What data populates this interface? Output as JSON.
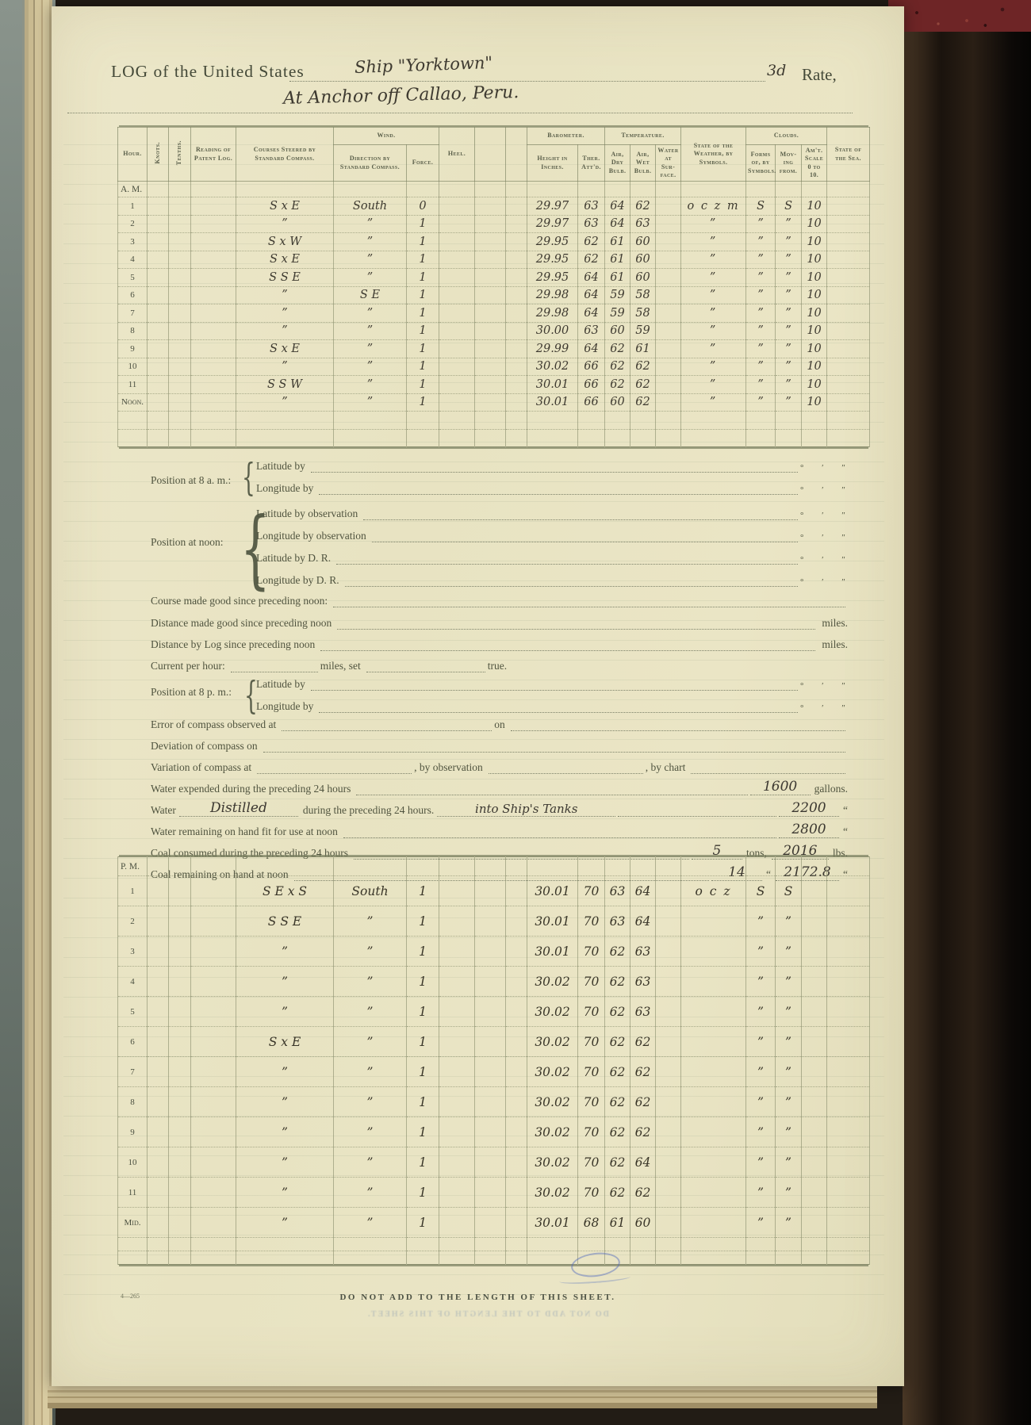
{
  "header": {
    "log_label": "LOG of the United States",
    "ship_name": "Ship \"Yorktown\"",
    "rate_value": "3d",
    "rate_label": "Rate,",
    "location_line": "At Anchor off Callao, Peru."
  },
  "table_headers": {
    "hour": "Hour.",
    "knots": "Knots.",
    "tenths": "Tenths.",
    "patent": "Reading of Patent Log.",
    "courses": "Courses Steered by Standard Compass.",
    "wind": "Wind.",
    "wind_direction": "Direction by Standard Compass.",
    "force": "Force.",
    "heel": "Heel.",
    "barometer": "Barometer.",
    "height": "Height in Inches.",
    "ther": "Ther. Att'd.",
    "temperature": "Temperature.",
    "air_dry": "Air, Dry Bulb.",
    "air_wet": "Air, Wet Bulb.",
    "water_surface": "Water at Sur-face.",
    "weather": "State of the Weather, by Symbols.",
    "clouds": "Clouds.",
    "forms": "Forms of, by Symbols.",
    "moving": "Mov-ing from.",
    "amount": "Am't. Scale 0 to 10.",
    "sea": "State of the Sea."
  },
  "am": {
    "label": "A. M.",
    "rows": [
      {
        "hour": "1",
        "course": "S x E",
        "dir": "South",
        "force": "0",
        "height": "29.97",
        "ther": "63",
        "dry": "64",
        "wet": "62",
        "weather": "o c z m",
        "forms": "S",
        "moving": "S",
        "amt": "10"
      },
      {
        "hour": "2",
        "course": "”",
        "dir": "”",
        "force": "1",
        "height": "29.97",
        "ther": "63",
        "dry": "64",
        "wet": "63",
        "weather": "”",
        "forms": "”",
        "moving": "”",
        "amt": "10"
      },
      {
        "hour": "3",
        "course": "S x W",
        "dir": "”",
        "force": "1",
        "height": "29.95",
        "ther": "62",
        "dry": "61",
        "wet": "60",
        "weather": "”",
        "forms": "”",
        "moving": "”",
        "amt": "10"
      },
      {
        "hour": "4",
        "course": "S x E",
        "dir": "”",
        "force": "1",
        "height": "29.95",
        "ther": "62",
        "dry": "61",
        "wet": "60",
        "weather": "”",
        "forms": "”",
        "moving": "”",
        "amt": "10"
      },
      {
        "hour": "5",
        "course": "S S E",
        "dir": "”",
        "force": "1",
        "height": "29.95",
        "ther": "64",
        "dry": "61",
        "wet": "60",
        "weather": "”",
        "forms": "”",
        "moving": "”",
        "amt": "10"
      },
      {
        "hour": "6",
        "course": "”",
        "dir": "S E",
        "force": "1",
        "height": "29.98",
        "ther": "64",
        "dry": "59",
        "wet": "58",
        "weather": "”",
        "forms": "”",
        "moving": "”",
        "amt": "10"
      },
      {
        "hour": "7",
        "course": "”",
        "dir": "”",
        "force": "1",
        "height": "29.98",
        "ther": "64",
        "dry": "59",
        "wet": "58",
        "weather": "”",
        "forms": "”",
        "moving": "”",
        "amt": "10"
      },
      {
        "hour": "8",
        "course": "”",
        "dir": "”",
        "force": "1",
        "height": "30.00",
        "ther": "63",
        "dry": "60",
        "wet": "59",
        "weather": "”",
        "forms": "”",
        "moving": "”",
        "amt": "10"
      },
      {
        "hour": "9",
        "course": "S x E",
        "dir": "”",
        "force": "1",
        "height": "29.99",
        "ther": "64",
        "dry": "62",
        "wet": "61",
        "weather": "”",
        "forms": "”",
        "moving": "”",
        "amt": "10"
      },
      {
        "hour": "10",
        "course": "”",
        "dir": "”",
        "force": "1",
        "height": "30.02",
        "ther": "66",
        "dry": "62",
        "wet": "62",
        "weather": "”",
        "forms": "”",
        "moving": "”",
        "amt": "10"
      },
      {
        "hour": "11",
        "course": "S S W",
        "dir": "”",
        "force": "1",
        "height": "30.01",
        "ther": "66",
        "dry": "62",
        "wet": "62",
        "weather": "”",
        "forms": "”",
        "moving": "”",
        "amt": "10"
      },
      {
        "hour": "Noon.",
        "course": "”",
        "dir": "”",
        "force": "1",
        "height": "30.01",
        "ther": "66",
        "dry": "60",
        "wet": "62",
        "weather": "”",
        "forms": "”",
        "moving": "”",
        "amt": "10"
      }
    ]
  },
  "pm": {
    "label": "P. M.",
    "rows": [
      {
        "hour": "1",
        "course": "S E x S",
        "dir": "South",
        "force": "1",
        "height": "30.01",
        "ther": "70",
        "dry": "63",
        "wet": "64",
        "weather": "o c z",
        "forms": "S",
        "moving": "S"
      },
      {
        "hour": "2",
        "course": "S S E",
        "dir": "”",
        "force": "1",
        "height": "30.01",
        "ther": "70",
        "dry": "63",
        "wet": "64",
        "forms": "”",
        "moving": "”"
      },
      {
        "hour": "3",
        "course": "”",
        "dir": "”",
        "force": "1",
        "height": "30.01",
        "ther": "70",
        "dry": "62",
        "wet": "63",
        "forms": "”",
        "moving": "”"
      },
      {
        "hour": "4",
        "course": "”",
        "dir": "”",
        "force": "1",
        "height": "30.02",
        "ther": "70",
        "dry": "62",
        "wet": "63",
        "forms": "”",
        "moving": "”"
      },
      {
        "hour": "5",
        "course": "”",
        "dir": "”",
        "force": "1",
        "height": "30.02",
        "ther": "70",
        "dry": "62",
        "wet": "63",
        "forms": "”",
        "moving": "”"
      },
      {
        "hour": "6",
        "course": "S x E",
        "dir": "”",
        "force": "1",
        "height": "30.02",
        "ther": "70",
        "dry": "62",
        "wet": "62",
        "forms": "”",
        "moving": "”"
      },
      {
        "hour": "7",
        "course": "”",
        "dir": "”",
        "force": "1",
        "height": "30.02",
        "ther": "70",
        "dry": "62",
        "wet": "62",
        "forms": "”",
        "moving": "”"
      },
      {
        "hour": "8",
        "course": "”",
        "dir": "”",
        "force": "1",
        "height": "30.02",
        "ther": "70",
        "dry": "62",
        "wet": "62",
        "forms": "”",
        "moving": "”"
      },
      {
        "hour": "9",
        "course": "”",
        "dir": "”",
        "force": "1",
        "height": "30.02",
        "ther": "70",
        "dry": "62",
        "wet": "62",
        "forms": "”",
        "moving": "”"
      },
      {
        "hour": "10",
        "course": "”",
        "dir": "”",
        "force": "1",
        "height": "30.02",
        "ther": "70",
        "dry": "62",
        "wet": "64",
        "forms": "”",
        "moving": "”"
      },
      {
        "hour": "11",
        "course": "”",
        "dir": "”",
        "force": "1",
        "height": "30.02",
        "ther": "70",
        "dry": "62",
        "wet": "62",
        "forms": "”",
        "moving": "”"
      },
      {
        "hour": "Mid.",
        "course": "”",
        "dir": "”",
        "force": "1",
        "height": "30.01",
        "ther": "68",
        "dry": "61",
        "wet": "60",
        "forms": "”",
        "moving": "”"
      }
    ]
  },
  "positions": {
    "at_8am": {
      "label": "Position at 8 a. m.:",
      "line1": "Latitude by",
      "line2": "Longitude by"
    },
    "at_noon": {
      "label": "Position at noon:",
      "line1": "Latitude by observation",
      "line2": "Longitude by observation",
      "line3": "Latitude by D. R.",
      "line4": "Longitude by D. R."
    },
    "at_8pm": {
      "label": "Position at 8 p. m.:",
      "line1": "Latitude by",
      "line2": "Longitude by"
    },
    "angle_marks": "°  ′  ″"
  },
  "nav": {
    "course_made_good": "Course made good since preceding noon:",
    "distance_made_good": "Distance made good since preceding noon",
    "distance_by_log": "Distance by Log since preceding noon",
    "miles": "miles.",
    "current_label": "Current per hour:",
    "current_mid": "miles, set",
    "current_end": "true.",
    "error_label": "Error of compass observed at",
    "error_mid": "on",
    "deviation_label": "Deviation of compass on",
    "variation_label": "Variation of compass at",
    "variation_mid": ", by observation",
    "variation_end": ", by chart"
  },
  "supplies": {
    "water_expended_label": "Water expended during the preceding 24 hours",
    "water_expended_value": "1600",
    "gallons": "gallons.",
    "water_prefix": "Water",
    "water_distilled_hw": "Distilled",
    "water_mid": "during the preceding 24 hours.",
    "water_tanks_hw": "into Ship's Tanks",
    "water_distilled_value": "2200",
    "ditto_mark": "“",
    "water_remaining_label": "Water remaining on hand fit for use at noon",
    "water_remaining_value": "2800",
    "coal_consumed_label": "Coal consumed during the preceding 24 hours",
    "coal_consumed_tons": "5",
    "tons_label": "tons,",
    "coal_consumed_lbs": "2016",
    "lbs_label": "lbs.",
    "coal_remaining_label": "Coal remaining on hand at noon",
    "coal_remaining_tons": "14",
    "coal_remaining_lbs": "2172.8"
  },
  "footer": {
    "form_number": "4—265",
    "notice": "DO NOT ADD TO THE LENGTH OF THIS SHEET."
  }
}
